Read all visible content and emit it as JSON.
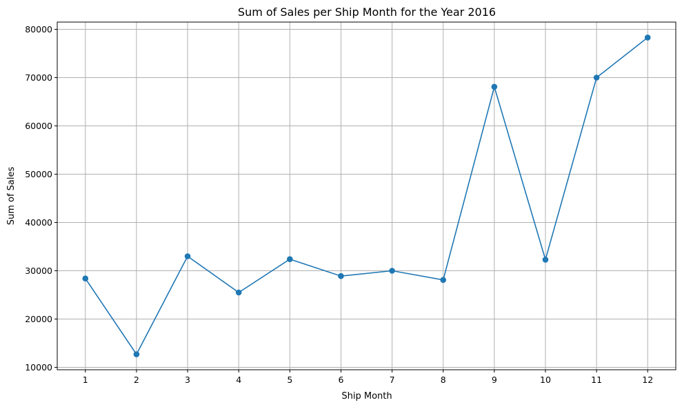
{
  "chart_data": {
    "type": "line",
    "title": "Sum of Sales per Ship Month for the Year 2016",
    "xlabel": "Ship Month",
    "ylabel": "Sum of Sales",
    "x": [
      1,
      2,
      3,
      4,
      5,
      6,
      7,
      8,
      9,
      10,
      11,
      12
    ],
    "xticks": [
      "1",
      "2",
      "3",
      "4",
      "5",
      "6",
      "7",
      "8",
      "9",
      "10",
      "11",
      "12"
    ],
    "series": [
      {
        "values": [
          28400,
          12700,
          33000,
          25500,
          32400,
          28900,
          30000,
          28100,
          68100,
          32300,
          70000,
          78300
        ],
        "color": "#1f77b4",
        "marker": "circle"
      }
    ],
    "ylim": [
      9500,
      81500
    ],
    "yticks": [
      10000,
      20000,
      30000,
      40000,
      50000,
      60000,
      70000,
      80000
    ],
    "ytick_labels": [
      "10000",
      "20000",
      "30000",
      "40000",
      "50000",
      "60000",
      "70000",
      "80000"
    ],
    "grid": true
  }
}
